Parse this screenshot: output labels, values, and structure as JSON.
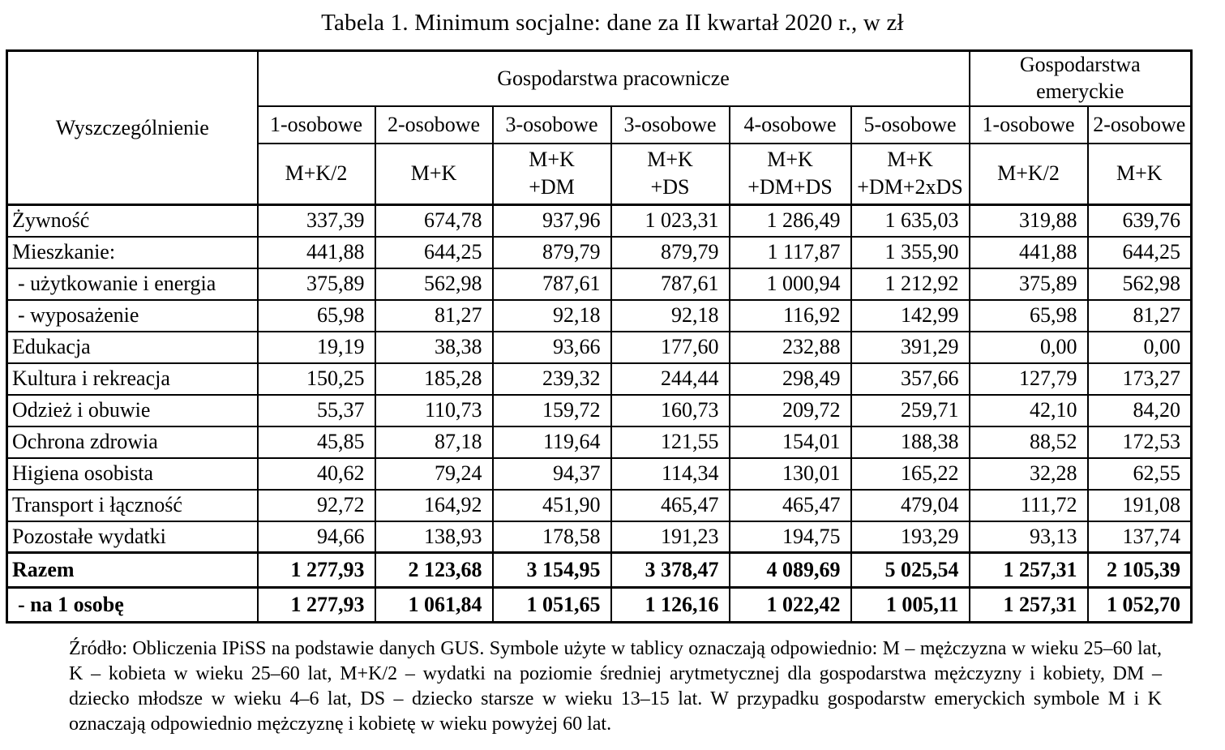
{
  "title": "Tabela 1. Minimum socjalne: dane za II kwartał 2020 r., w zł",
  "table": {
    "corner_header": "Wyszczególnienie",
    "groups": [
      {
        "label": "Gospodarstwa pracownicze",
        "span": 6
      },
      {
        "label": "Gospodarstwa\nemeryckie",
        "span": 2
      }
    ],
    "size_headers": [
      "1-osobowe",
      "2-osobowe",
      "3-osobowe",
      "3-osobowe",
      "4-osobowe",
      "5-osobowe",
      "1-osobowe",
      "2-osobowe"
    ],
    "composition_headers": [
      "M+K/2",
      "M+K",
      "M+K\n+DM",
      "M+K\n+DS",
      "M+K\n+DM+DS",
      "M+K\n+DM+2xDS",
      "M+K/2",
      "M+K"
    ],
    "rows": [
      {
        "label": "Żywność",
        "indent": false,
        "values": [
          "337,39",
          "674,78",
          "937,96",
          "1 023,31",
          "1 286,49",
          "1 635,03",
          "319,88",
          "639,76"
        ]
      },
      {
        "label": "Mieszkanie:",
        "indent": false,
        "values": [
          "441,88",
          "644,25",
          "879,79",
          "879,79",
          "1 117,87",
          "1 355,90",
          "441,88",
          "644,25"
        ]
      },
      {
        "label": "- użytkowanie i energia",
        "indent": true,
        "values": [
          "375,89",
          "562,98",
          "787,61",
          "787,61",
          "1 000,94",
          "1 212,92",
          "375,89",
          "562,98"
        ]
      },
      {
        "label": "- wyposażenie",
        "indent": true,
        "values": [
          "65,98",
          "81,27",
          "92,18",
          "92,18",
          "116,92",
          "142,99",
          "65,98",
          "81,27"
        ]
      },
      {
        "label": "Edukacja",
        "indent": false,
        "values": [
          "19,19",
          "38,38",
          "93,66",
          "177,60",
          "232,88",
          "391,29",
          "0,00",
          "0,00"
        ]
      },
      {
        "label": "Kultura i rekreacja",
        "indent": false,
        "values": [
          "150,25",
          "185,28",
          "239,32",
          "244,44",
          "298,49",
          "357,66",
          "127,79",
          "173,27"
        ]
      },
      {
        "label": "Odzież i obuwie",
        "indent": false,
        "values": [
          "55,37",
          "110,73",
          "159,72",
          "160,73",
          "209,72",
          "259,71",
          "42,10",
          "84,20"
        ]
      },
      {
        "label": "Ochrona zdrowia",
        "indent": false,
        "values": [
          "45,85",
          "87,18",
          "119,64",
          "121,55",
          "154,01",
          "188,38",
          "88,52",
          "172,53"
        ]
      },
      {
        "label": "Higiena osobista",
        "indent": false,
        "values": [
          "40,62",
          "79,24",
          "94,37",
          "114,34",
          "130,01",
          "165,22",
          "32,28",
          "62,55"
        ]
      },
      {
        "label": "Transport i łączność",
        "indent": false,
        "values": [
          "92,72",
          "164,92",
          "451,90",
          "465,47",
          "465,47",
          "479,04",
          "111,72",
          "191,08"
        ]
      },
      {
        "label": "Pozostałe wydatki",
        "indent": false,
        "values": [
          "94,66",
          "138,93",
          "178,58",
          "191,23",
          "194,75",
          "193,29",
          "93,13",
          "137,74"
        ]
      }
    ],
    "summary_rows": [
      {
        "label": "Razem",
        "indent": false,
        "values": [
          "1 277,93",
          "2 123,68",
          "3 154,95",
          "3 378,47",
          "4 089,69",
          "5 025,54",
          "1 257,31",
          "2 105,39"
        ]
      },
      {
        "label": "- na 1 osobę",
        "indent": true,
        "values": [
          "1 277,93",
          "1 061,84",
          "1 051,65",
          "1 126,16",
          "1 022,42",
          "1 005,11",
          "1 257,31",
          "1 052,70"
        ]
      }
    ]
  },
  "footnote": "Źródło: Obliczenia IPiSS na podstawie danych GUS. Symbole użyte w tablicy oznaczają odpowiednio: M – mężczyzna w wieku 25–60 lat, K – kobieta w wieku 25–60 lat, M+K/2 – wydatki na poziomie średniej arytmetycznej dla gospodarstwa mężczyzny i kobiety, DM – dziecko młodsze w wieku 4–6 lat, DS – dziecko starsze w wieku 13–15 lat. W przypadku gospodarstw emeryckich symbole M i K oznaczają odpowiednio mężczyznę i kobietę w wieku powyżej 60 lat."
}
